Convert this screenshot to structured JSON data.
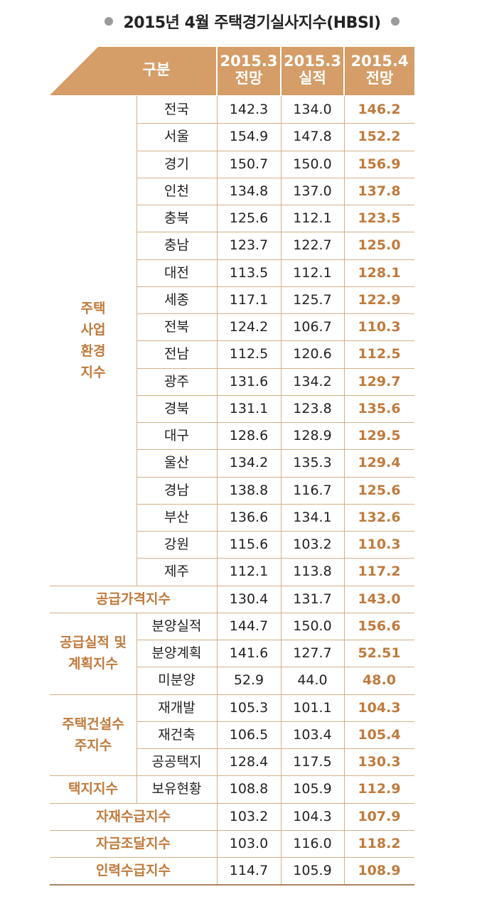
{
  "title": "2015년 4월 주택경기실사지수(HBSI)",
  "colors": {
    "accent": "#c07a3c",
    "header_bg": "#d59d67",
    "bullet": "#9a9a9a"
  },
  "header": {
    "category": "구분",
    "columns": [
      {
        "line1": "2015.3",
        "line2": "전망"
      },
      {
        "line1": "2015.3",
        "line2": "실적"
      },
      {
        "line1": "2015.4",
        "line2": "전망"
      }
    ]
  },
  "groups": [
    {
      "label_lines": [
        "주택",
        "사업",
        "환경",
        "지수"
      ],
      "rows": [
        {
          "sub": "전국",
          "v": [
            "142.3",
            "134.0",
            "146.2"
          ]
        },
        {
          "sub": "서울",
          "v": [
            "154.9",
            "147.8",
            "152.2"
          ]
        },
        {
          "sub": "경기",
          "v": [
            "150.7",
            "150.0",
            "156.9"
          ]
        },
        {
          "sub": "인천",
          "v": [
            "134.8",
            "137.0",
            "137.8"
          ]
        },
        {
          "sub": "충북",
          "v": [
            "125.6",
            "112.1",
            "123.5"
          ]
        },
        {
          "sub": "충남",
          "v": [
            "123.7",
            "122.7",
            "125.0"
          ]
        },
        {
          "sub": "대전",
          "v": [
            "113.5",
            "112.1",
            "128.1"
          ]
        },
        {
          "sub": "세종",
          "v": [
            "117.1",
            "125.7",
            "122.9"
          ]
        },
        {
          "sub": "전북",
          "v": [
            "124.2",
            "106.7",
            "110.3"
          ]
        },
        {
          "sub": "전남",
          "v": [
            "112.5",
            "120.6",
            "112.5"
          ]
        },
        {
          "sub": "광주",
          "v": [
            "131.6",
            "134.2",
            "129.7"
          ]
        },
        {
          "sub": "경북",
          "v": [
            "131.1",
            "123.8",
            "135.6"
          ]
        },
        {
          "sub": "대구",
          "v": [
            "128.6",
            "128.9",
            "129.5"
          ]
        },
        {
          "sub": "울산",
          "v": [
            "134.2",
            "135.3",
            "129.4"
          ]
        },
        {
          "sub": "경남",
          "v": [
            "138.8",
            "116.7",
            "125.6"
          ]
        },
        {
          "sub": "부산",
          "v": [
            "136.6",
            "134.1",
            "132.6"
          ]
        },
        {
          "sub": "강원",
          "v": [
            "115.6",
            "103.2",
            "110.3"
          ]
        },
        {
          "sub": "제주",
          "v": [
            "112.1",
            "113.8",
            "117.2"
          ]
        }
      ]
    },
    {
      "label_lines": [
        "공급가격지수"
      ],
      "full": true,
      "rows": [
        {
          "sub": "",
          "v": [
            "130.4",
            "131.7",
            "143.0"
          ]
        }
      ]
    },
    {
      "label_lines": [
        "공급실적 및",
        "계획지수"
      ],
      "rows": [
        {
          "sub": "분양실적",
          "v": [
            "144.7",
            "150.0",
            "156.6"
          ]
        },
        {
          "sub": "분양계획",
          "v": [
            "141.6",
            "127.7",
            "52.51"
          ]
        },
        {
          "sub": "미분양",
          "v": [
            "52.9",
            "44.0",
            "48.0"
          ]
        }
      ]
    },
    {
      "label_lines": [
        "주택건설수",
        "주지수"
      ],
      "rows": [
        {
          "sub": "재개발",
          "v": [
            "105.3",
            "101.1",
            "104.3"
          ]
        },
        {
          "sub": "재건축",
          "v": [
            "106.5",
            "103.4",
            "105.4"
          ]
        },
        {
          "sub": "공공택지",
          "v": [
            "128.4",
            "117.5",
            "130.3"
          ]
        }
      ]
    },
    {
      "label_lines": [
        "택지지수"
      ],
      "rows": [
        {
          "sub": "보유현황",
          "v": [
            "108.8",
            "105.9",
            "112.9"
          ]
        }
      ]
    },
    {
      "label_lines": [
        "자재수급지수"
      ],
      "full": true,
      "rows": [
        {
          "sub": "",
          "v": [
            "103.2",
            "104.3",
            "107.9"
          ]
        }
      ]
    },
    {
      "label_lines": [
        "자금조달지수"
      ],
      "full": true,
      "rows": [
        {
          "sub": "",
          "v": [
            "103.0",
            "116.0",
            "118.2"
          ]
        }
      ]
    },
    {
      "label_lines": [
        "인력수급지수"
      ],
      "full": true,
      "rows": [
        {
          "sub": "",
          "v": [
            "114.7",
            "105.9",
            "108.9"
          ]
        }
      ]
    }
  ]
}
